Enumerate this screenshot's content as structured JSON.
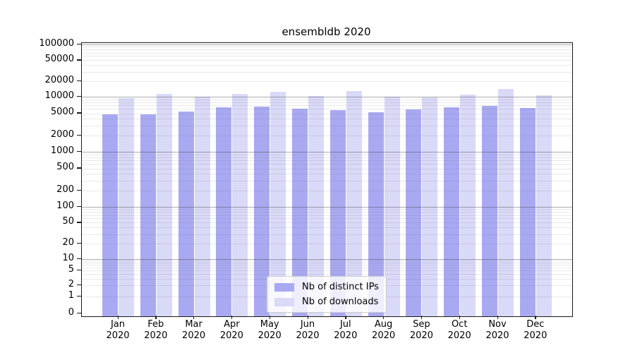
{
  "chart_data": {
    "type": "bar",
    "title": "ensembldb 2020",
    "categories": [
      "Jan 2020",
      "Feb 2020",
      "Mar 2020",
      "Apr 2020",
      "May 2020",
      "Jun 2020",
      "Jul 2020",
      "Aug 2020",
      "Sep 2020",
      "Oct 2020",
      "Nov 2020",
      "Dec 2020"
    ],
    "series": [
      {
        "name": "Nb of distinct IPs",
        "color": "#a9a9f2",
        "values": [
          4800,
          4800,
          5400,
          6400,
          6600,
          6000,
          5700,
          5300,
          5900,
          6500,
          6900,
          6300
        ]
      },
      {
        "name": "Nb of downloads",
        "color": "#d9d9f8",
        "values": [
          9500,
          11400,
          10100,
          11400,
          12300,
          10300,
          12800,
          9900,
          9700,
          10900,
          14300,
          10800
        ]
      }
    ],
    "yscale": "symlog",
    "ylim": [
      0,
      100000
    ],
    "y_ticks": [
      0,
      1,
      2,
      5,
      10,
      20,
      50,
      100,
      200,
      500,
      1000,
      2000,
      5000,
      10000,
      20000,
      50000,
      100000
    ],
    "grid": true,
    "legend_position": "lower center",
    "colors": {
      "axis": "#1a1a1a",
      "grid_major": "#a8a8a8",
      "grid_minor": "#e9e9e9",
      "background": "#ffffff"
    }
  }
}
